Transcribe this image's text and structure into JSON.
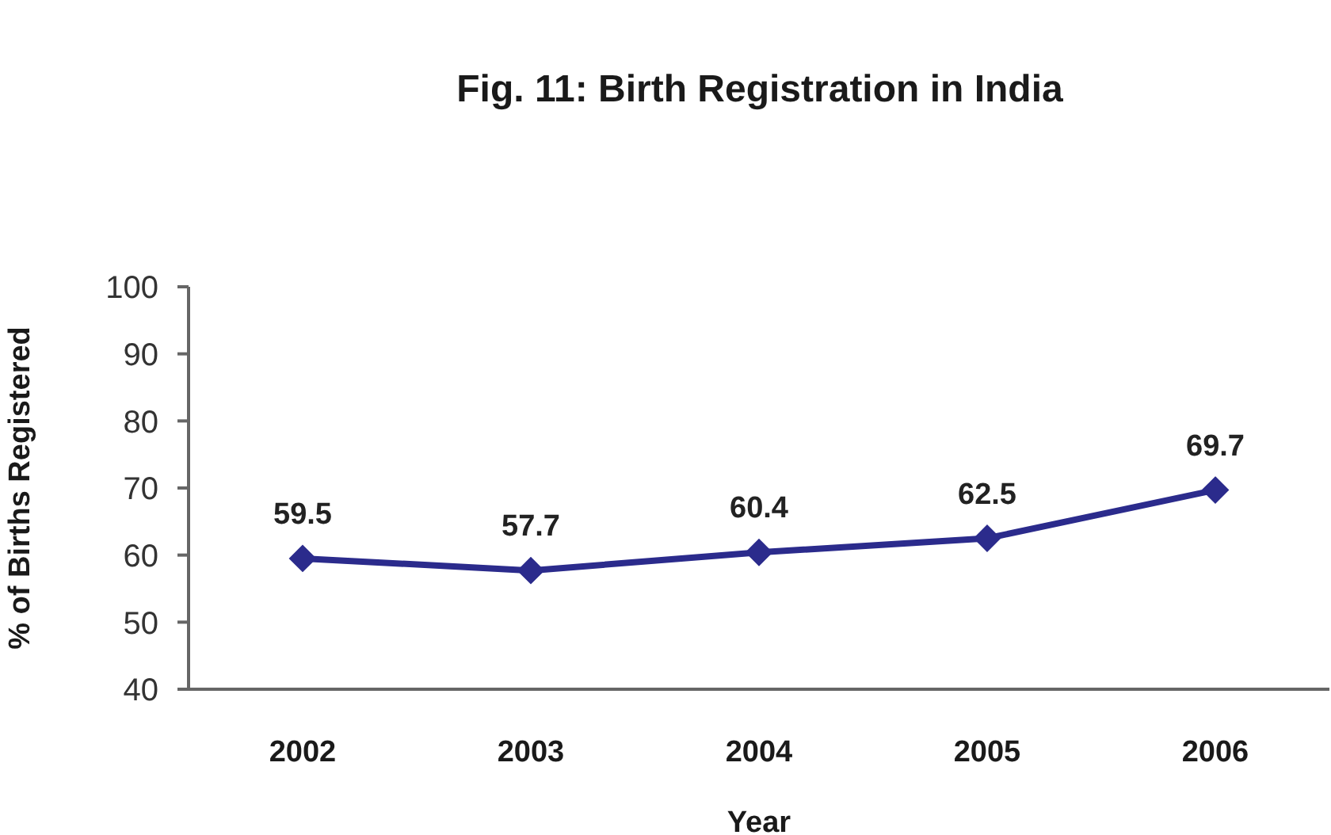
{
  "chart_data": {
    "type": "line",
    "title": "Fig. 11: Birth Registration in India",
    "xlabel": "Year",
    "ylabel": "% of Births Registered",
    "categories": [
      "2002",
      "2003",
      "2004",
      "2005",
      "2006"
    ],
    "series": [
      {
        "color": "#2b2b8c",
        "values": [
          59.5,
          57.7,
          60.4,
          62.5,
          69.7
        ]
      }
    ],
    "ylim": [
      40,
      100
    ],
    "yticks": [
      40,
      50,
      60,
      70,
      80,
      90,
      100
    ],
    "data_labels": true,
    "marker": "diamond",
    "line_style": "solid"
  }
}
